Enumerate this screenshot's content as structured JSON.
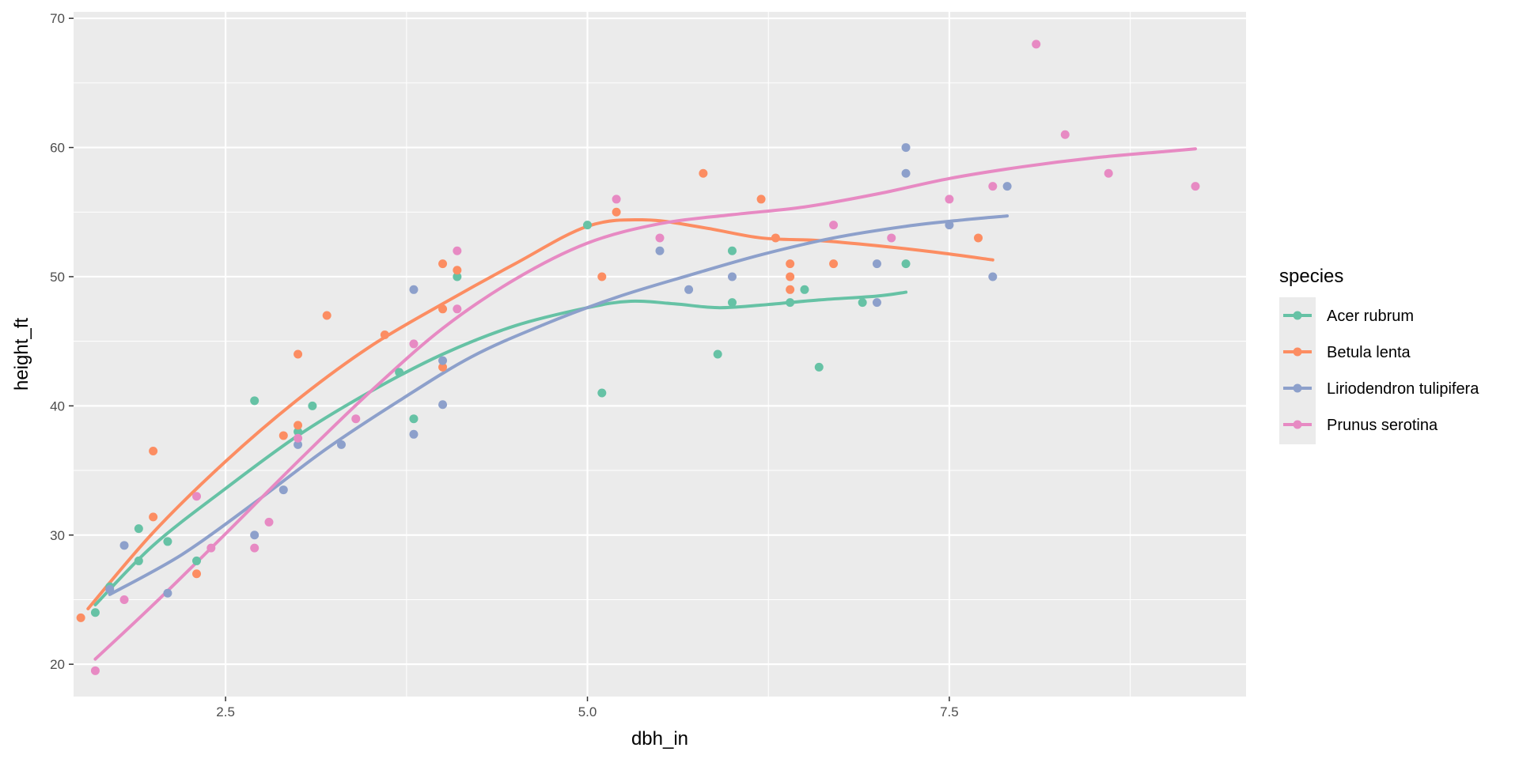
{
  "chart_data": {
    "type": "scatter",
    "title": "",
    "xlabel": "dbh_in",
    "ylabel": "height_ft",
    "xlim": [
      1.45,
      9.55
    ],
    "ylim": [
      17.5,
      70.5
    ],
    "x_ticks": [
      2.5,
      5.0,
      7.5
    ],
    "x_tick_labels": [
      "2.5",
      "5.0",
      "7.5"
    ],
    "y_ticks": [
      20,
      30,
      40,
      50,
      60,
      70
    ],
    "y_tick_labels": [
      "20",
      "30",
      "40",
      "50",
      "60",
      "70"
    ],
    "grid": true,
    "legend": {
      "title": "species",
      "position": "right"
    },
    "series": [
      {
        "name": "Acer rubrum",
        "color": "#66c2a5",
        "points": [
          [
            1.6,
            24
          ],
          [
            1.7,
            26
          ],
          [
            1.9,
            30.5
          ],
          [
            1.9,
            28
          ],
          [
            2.1,
            29.5
          ],
          [
            2.3,
            28
          ],
          [
            2.7,
            40.4
          ],
          [
            3.0,
            38
          ],
          [
            3.1,
            40
          ],
          [
            3.7,
            42.6
          ],
          [
            3.8,
            39
          ],
          [
            4.1,
            50
          ],
          [
            5.0,
            54
          ],
          [
            5.1,
            41
          ],
          [
            5.9,
            44
          ],
          [
            6.0,
            52
          ],
          [
            6.0,
            48
          ],
          [
            6.4,
            48
          ],
          [
            6.5,
            49
          ],
          [
            6.6,
            43
          ],
          [
            6.9,
            48
          ],
          [
            7.2,
            51
          ]
        ],
        "smooth": [
          [
            1.6,
            24.6
          ],
          [
            2.0,
            29.2
          ],
          [
            2.5,
            33.6
          ],
          [
            3.0,
            37.7
          ],
          [
            3.5,
            41.1
          ],
          [
            4.0,
            44.0
          ],
          [
            4.5,
            46.2
          ],
          [
            5.0,
            47.6
          ],
          [
            5.3,
            48.1
          ],
          [
            5.6,
            47.9
          ],
          [
            5.9,
            47.6
          ],
          [
            6.2,
            47.8
          ],
          [
            6.6,
            48.2
          ],
          [
            7.0,
            48.5
          ],
          [
            7.2,
            48.8
          ]
        ]
      },
      {
        "name": "Betula lenta",
        "color": "#fc8d62",
        "points": [
          [
            1.5,
            23.6
          ],
          [
            2.0,
            31.4
          ],
          [
            2.0,
            36.5
          ],
          [
            2.3,
            27
          ],
          [
            2.9,
            37.7
          ],
          [
            3.0,
            38.5
          ],
          [
            3.0,
            44
          ],
          [
            3.2,
            47
          ],
          [
            3.6,
            45.5
          ],
          [
            4.0,
            51
          ],
          [
            4.0,
            47.5
          ],
          [
            4.0,
            43
          ],
          [
            4.1,
            50.5
          ],
          [
            5.1,
            50
          ],
          [
            5.2,
            55
          ],
          [
            5.8,
            58
          ],
          [
            6.2,
            56
          ],
          [
            6.3,
            53
          ],
          [
            6.4,
            51
          ],
          [
            6.4,
            50
          ],
          [
            6.4,
            49
          ],
          [
            6.7,
            51
          ],
          [
            7.7,
            53
          ]
        ],
        "smooth": [
          [
            1.55,
            24.3
          ],
          [
            2.0,
            30.2
          ],
          [
            2.5,
            35.7
          ],
          [
            3.0,
            40.5
          ],
          [
            3.5,
            44.6
          ],
          [
            4.0,
            47.9
          ],
          [
            4.5,
            51.0
          ],
          [
            5.0,
            53.9
          ],
          [
            5.4,
            54.4
          ],
          [
            5.8,
            53.8
          ],
          [
            6.2,
            53.0
          ],
          [
            6.6,
            52.8
          ],
          [
            7.0,
            52.4
          ],
          [
            7.4,
            51.9
          ],
          [
            7.8,
            51.3
          ]
        ]
      },
      {
        "name": "Liriodendron tulipifera",
        "color": "#8da0cb",
        "points": [
          [
            1.7,
            25.8
          ],
          [
            1.8,
            29.2
          ],
          [
            2.1,
            25.5
          ],
          [
            2.7,
            30
          ],
          [
            2.9,
            33.5
          ],
          [
            3.0,
            37
          ],
          [
            3.3,
            37
          ],
          [
            3.8,
            37.8
          ],
          [
            3.8,
            49
          ],
          [
            4.0,
            40.1
          ],
          [
            4.0,
            43.5
          ],
          [
            5.5,
            52
          ],
          [
            5.7,
            49
          ],
          [
            6.0,
            50
          ],
          [
            7.0,
            51
          ],
          [
            7.0,
            48
          ],
          [
            7.2,
            58
          ],
          [
            7.2,
            60
          ],
          [
            7.5,
            54
          ],
          [
            7.8,
            50
          ],
          [
            7.9,
            57
          ]
        ],
        "smooth": [
          [
            1.7,
            25.4
          ],
          [
            2.2,
            28.5
          ],
          [
            2.7,
            32.5
          ],
          [
            3.2,
            36.7
          ],
          [
            3.7,
            40.4
          ],
          [
            4.2,
            43.8
          ],
          [
            4.7,
            46.3
          ],
          [
            5.2,
            48.4
          ],
          [
            5.7,
            50.1
          ],
          [
            6.2,
            51.7
          ],
          [
            6.7,
            53.0
          ],
          [
            7.2,
            53.9
          ],
          [
            7.6,
            54.4
          ],
          [
            7.9,
            54.7
          ]
        ]
      },
      {
        "name": "Prunus serotina",
        "color": "#e78ac3",
        "points": [
          [
            1.6,
            19.5
          ],
          [
            1.8,
            25
          ],
          [
            2.3,
            33
          ],
          [
            2.4,
            29
          ],
          [
            2.7,
            29
          ],
          [
            2.8,
            31
          ],
          [
            3.0,
            37.5
          ],
          [
            3.4,
            39
          ],
          [
            3.8,
            44.8
          ],
          [
            4.1,
            47.5
          ],
          [
            4.1,
            52
          ],
          [
            5.2,
            56
          ],
          [
            5.5,
            53
          ],
          [
            6.7,
            54
          ],
          [
            7.1,
            53
          ],
          [
            7.5,
            56
          ],
          [
            7.8,
            57
          ],
          [
            8.1,
            68
          ],
          [
            8.3,
            61
          ],
          [
            8.6,
            58
          ],
          [
            9.2,
            57
          ]
        ],
        "smooth": [
          [
            1.6,
            20.4
          ],
          [
            2.0,
            24.6
          ],
          [
            2.5,
            30.1
          ],
          [
            3.0,
            35.7
          ],
          [
            3.5,
            41.1
          ],
          [
            4.0,
            46.0
          ],
          [
            4.5,
            49.8
          ],
          [
            5.0,
            52.6
          ],
          [
            5.5,
            54.1
          ],
          [
            6.0,
            54.8
          ],
          [
            6.5,
            55.4
          ],
          [
            7.0,
            56.4
          ],
          [
            7.5,
            57.6
          ],
          [
            8.0,
            58.5
          ],
          [
            8.5,
            59.2
          ],
          [
            9.0,
            59.7
          ],
          [
            9.2,
            59.9
          ]
        ]
      }
    ]
  }
}
